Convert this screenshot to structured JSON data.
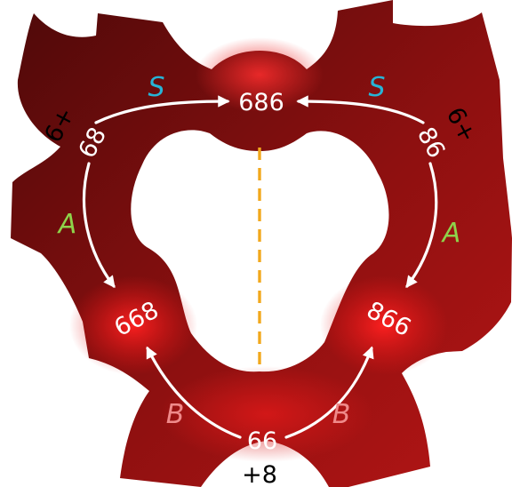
{
  "nodes": {
    "top": "686",
    "upper_left": "68",
    "upper_right": "86",
    "lower_left": "668",
    "lower_right": "866",
    "bottom": "66"
  },
  "outer_labels": {
    "left": "6+",
    "right": "6+",
    "bottom": "+8"
  },
  "path_labels": {
    "s_left": "S",
    "s_right": "S",
    "a_left": "A",
    "a_right": "A",
    "b_left": "B",
    "b_right": "B"
  },
  "colors": {
    "s_path": "#27b4d6",
    "a_path": "#8ed34a",
    "b_path": "#ef8a8a",
    "surface_dark": "#5a0b0b",
    "surface_bright": "#e41616",
    "mirror_line": "#f2a81d"
  }
}
